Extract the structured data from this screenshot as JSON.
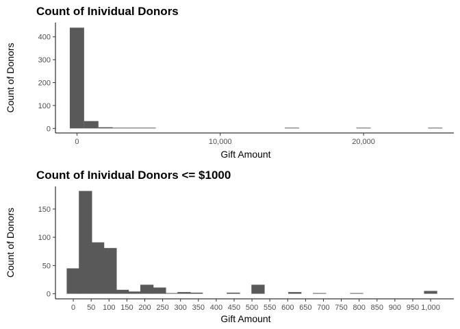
{
  "chart_data": [
    {
      "type": "bar",
      "title": "Count of Inividual Donors",
      "xlabel": "Gift Amount",
      "ylabel": "Count of Donors",
      "xlim": [
        -1500,
        26300
      ],
      "ylim": [
        -20,
        462
      ],
      "bin_width": 1000,
      "x_ticks": [
        0,
        10000,
        20000
      ],
      "x_tick_labels": [
        "0",
        "10,000",
        "20,000"
      ],
      "y_ticks": [
        0,
        100,
        200,
        300,
        400
      ],
      "y_tick_labels": [
        "0",
        "100",
        "200",
        "300",
        "400"
      ],
      "bins": [
        {
          "x": 0,
          "count": 440
        },
        {
          "x": 1000,
          "count": 32
        },
        {
          "x": 2000,
          "count": 5
        },
        {
          "x": 3000,
          "count": 2
        },
        {
          "x": 4000,
          "count": 2
        },
        {
          "x": 5000,
          "count": 1
        },
        {
          "x": 15000,
          "count": 1
        },
        {
          "x": 20000,
          "count": 1
        },
        {
          "x": 25000,
          "count": 1
        }
      ],
      "bar_color": "#595959",
      "grid": false
    },
    {
      "type": "bar",
      "title": "Count of Inividual Donors <= $1000",
      "xlabel": "Gift Amount",
      "ylabel": "Count of Donors",
      "xlim": [
        -50,
        1065
      ],
      "ylim": [
        -9,
        190
      ],
      "bin_width": 37,
      "x_ticks": [
        0,
        50,
        100,
        150,
        200,
        250,
        300,
        350,
        400,
        450,
        500,
        550,
        600,
        650,
        700,
        750,
        800,
        850,
        900,
        950,
        1000
      ],
      "x_tick_labels": [
        "0",
        "50",
        "100",
        "150",
        "200",
        "250",
        "300",
        "350",
        "400",
        "450",
        "500",
        "550",
        "600",
        "650",
        "700",
        "750",
        "800",
        "850",
        "900",
        "950",
        "1,000"
      ],
      "y_ticks": [
        0,
        50,
        100,
        150
      ],
      "y_tick_labels": [
        "0",
        "50",
        "100",
        "150"
      ],
      "bins": [
        {
          "x": 0,
          "count": 45
        },
        {
          "x": 34,
          "count": 182
        },
        {
          "x": 68,
          "count": 91
        },
        {
          "x": 103,
          "count": 81
        },
        {
          "x": 137,
          "count": 7
        },
        {
          "x": 172,
          "count": 4
        },
        {
          "x": 206,
          "count": 16
        },
        {
          "x": 241,
          "count": 11
        },
        {
          "x": 275,
          "count": 1
        },
        {
          "x": 310,
          "count": 3
        },
        {
          "x": 344,
          "count": 2
        },
        {
          "x": 448,
          "count": 2
        },
        {
          "x": 517,
          "count": 16
        },
        {
          "x": 620,
          "count": 3
        },
        {
          "x": 689,
          "count": 1
        },
        {
          "x": 793,
          "count": 1
        },
        {
          "x": 1000,
          "count": 5
        }
      ],
      "bar_color": "#595959",
      "grid": false
    }
  ]
}
